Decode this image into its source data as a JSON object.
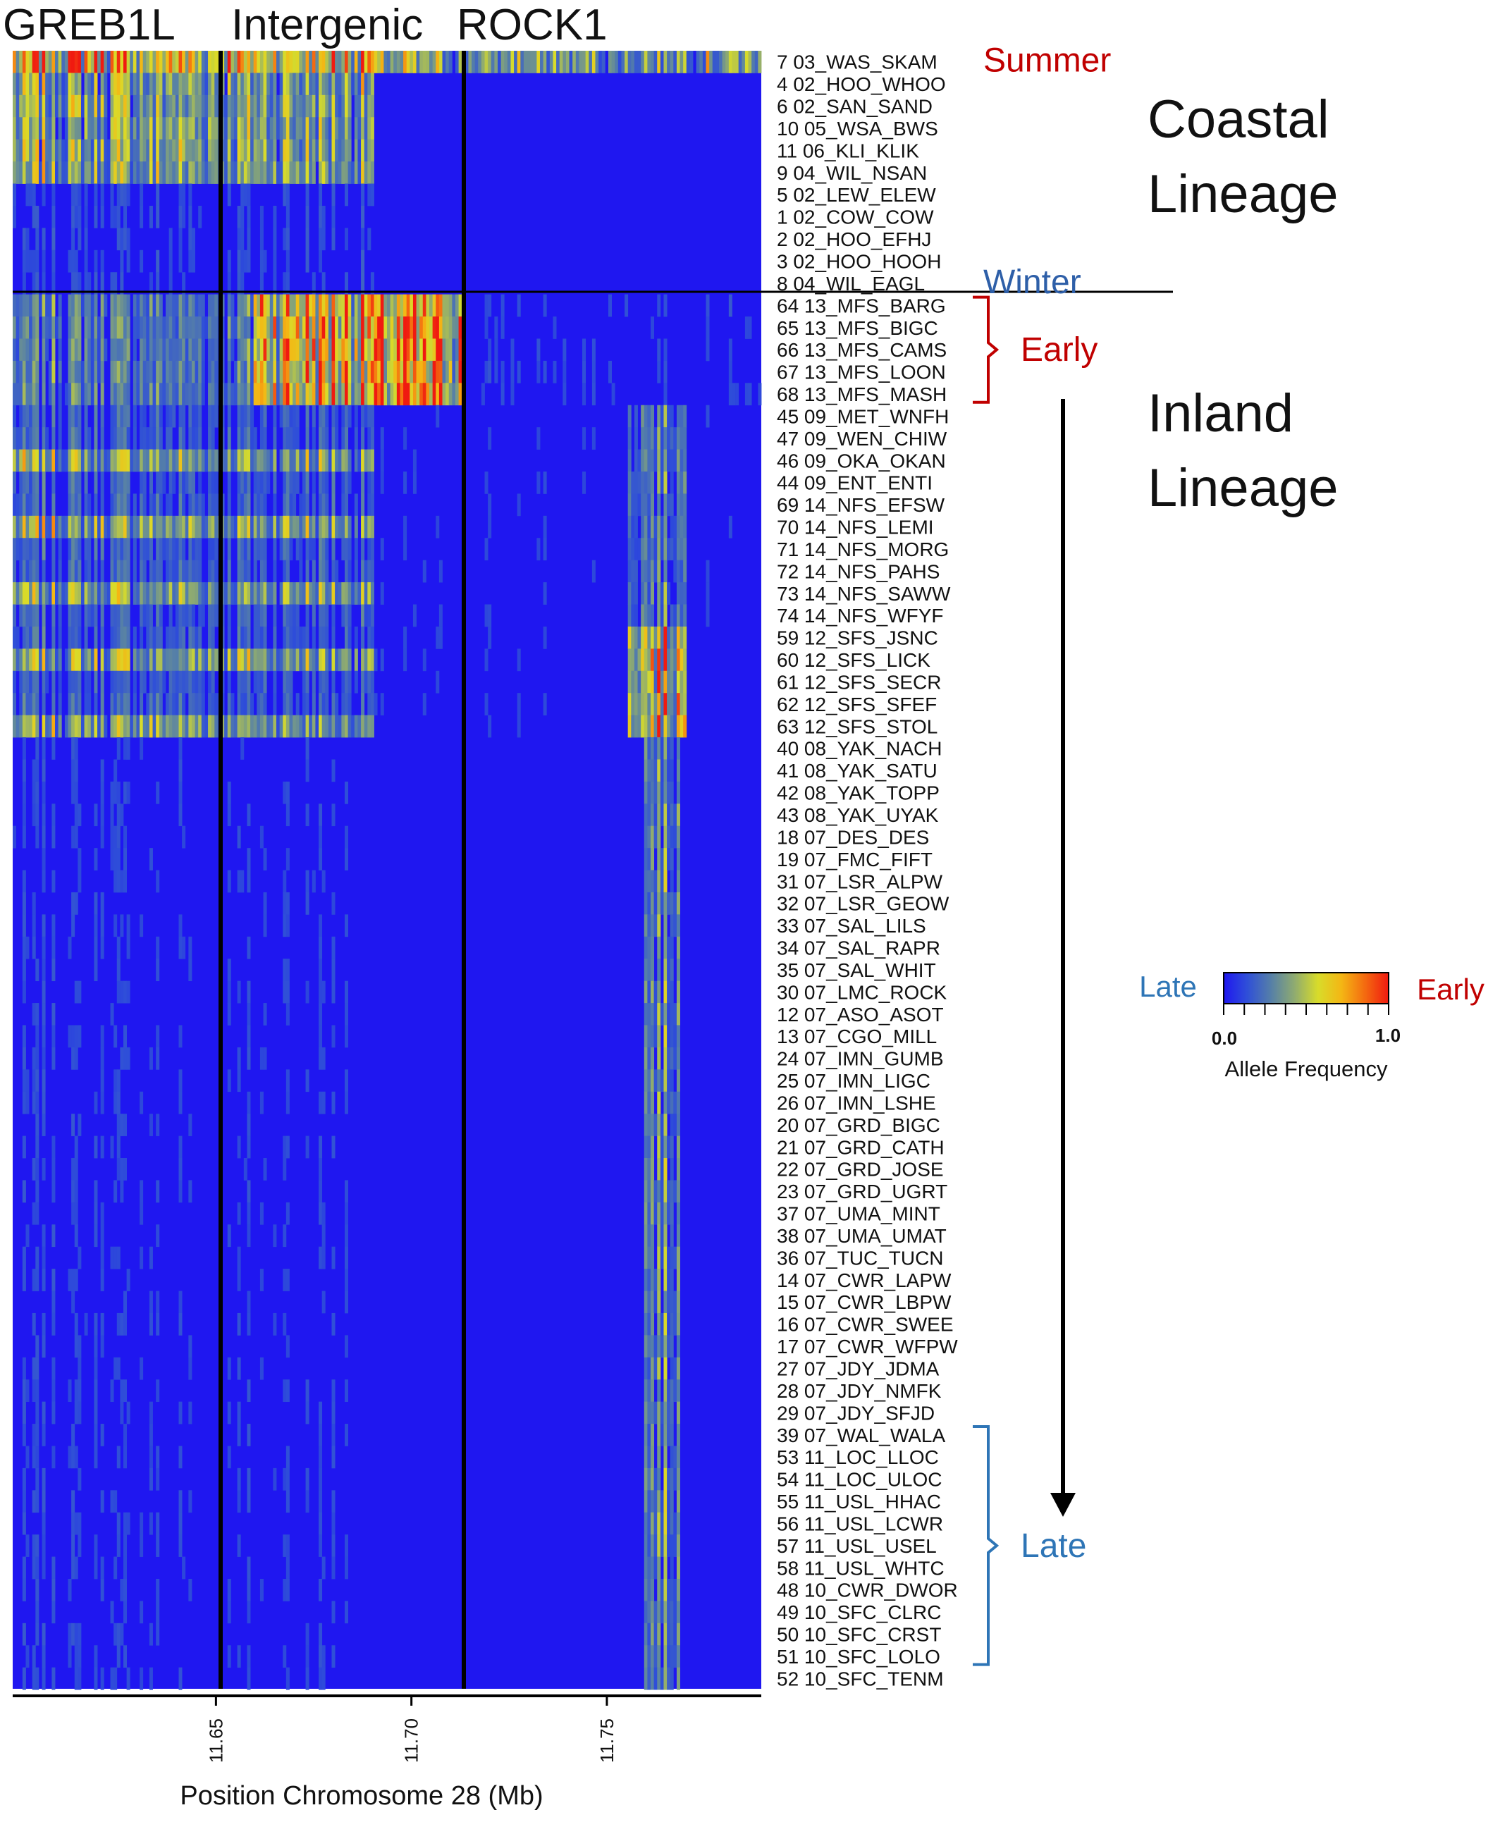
{
  "chart_data": {
    "type": "heatmap",
    "title": "",
    "region_labels": [
      "GREB1L",
      "Intergenic",
      "ROCK1"
    ],
    "xlabel": "Position Chromosome 28 (Mb)",
    "x_ticks": [
      11.65,
      11.7,
      11.75
    ],
    "xlim": [
      11.598,
      11.7895
    ],
    "region_boundaries_mb": [
      11.6515,
      11.7135
    ],
    "y_categories": [
      "7 03_WAS_SKAM",
      "4 02_HOO_WHOO",
      "6 02_SAN_SAND",
      "10 05_WSA_BWS",
      "11 06_KLI_KLIK",
      "9 04_WIL_NSAN",
      "5 02_LEW_ELEW",
      "1 02_COW_COW",
      "2 02_HOO_EFHJ",
      "3 02_HOO_HOOH",
      "8 04_WIL_EAGL",
      "64 13_MFS_BARG",
      "65 13_MFS_BIGC",
      "66 13_MFS_CAMS",
      "67 13_MFS_LOON",
      "68 13_MFS_MASH",
      "45 09_MET_WNFH",
      "47 09_WEN_CHIW",
      "46 09_OKA_OKAN",
      "44 09_ENT_ENTI",
      "69 14_NFS_EFSW",
      "70 14_NFS_LEMI",
      "71 14_NFS_MORG",
      "72 14_NFS_PAHS",
      "73 14_NFS_SAWW",
      "74 14_NFS_WFYF",
      "59 12_SFS_JSNC",
      "60 12_SFS_LICK",
      "61 12_SFS_SECR",
      "62 12_SFS_SFEF",
      "63 12_SFS_STOL",
      "40 08_YAK_NACH",
      "41 08_YAK_SATU",
      "42 08_YAK_TOPP",
      "43 08_YAK_UYAK",
      "18 07_DES_DES",
      "19 07_FMC_FIFT",
      "31 07_LSR_ALPW",
      "32 07_LSR_GEOW",
      "33 07_SAL_LILS",
      "34 07_SAL_RAPR",
      "35 07_SAL_WHIT",
      "30 07_LMC_ROCK",
      "12 07_ASO_ASOT",
      "13 07_CGO_MILL",
      "24 07_IMN_GUMB",
      "25 07_IMN_LIGC",
      "26 07_IMN_LSHE",
      "20 07_GRD_BIGC",
      "21 07_GRD_CATH",
      "22 07_GRD_JOSE",
      "23 07_GRD_UGRT",
      "37 07_UMA_MINT",
      "38 07_UMA_UMAT",
      "36 07_TUC_TUCN",
      "14 07_CWR_LAPW",
      "15 07_CWR_LBPW",
      "16 07_CWR_SWEE",
      "17 07_CWR_WFPW",
      "27 07_JDY_JDMA",
      "28 07_JDY_NMFK",
      "29 07_JDY_SFJD",
      "39 07_WAL_WALA",
      "53 11_LOC_LLOC",
      "54 11_LOC_ULOC",
      "55 11_USL_HHAC",
      "56 11_USL_LCWR",
      "57 11_USL_USEL",
      "58 11_USL_WHTC",
      "48 10_CWR_DWOR",
      "49 10_SFC_CLRC",
      "50 10_SFC_CRST",
      "51 10_SFC_LOLO",
      "52 10_SFC_TENM"
    ],
    "lineage_labels": [
      {
        "text": "Coastal Lineage",
        "lines": [
          "Coastal",
          "Lineage"
        ],
        "first_row": 0,
        "last_row": 10
      },
      {
        "text": "Inland Lineage",
        "lines": [
          "Inland",
          "Lineage"
        ],
        "first_row": 11,
        "last_row": 72
      }
    ],
    "annotations": [
      {
        "text": "Summer",
        "row": 0,
        "color": "#c00000"
      },
      {
        "text": "Winter",
        "row": 10,
        "color": "#2e5fa8"
      },
      {
        "text": "Early",
        "first_row": 11,
        "last_row": 15,
        "color": "#c00000",
        "bracket": true
      },
      {
        "text": "Late",
        "first_row": 62,
        "last_row": 72,
        "color": "#2e75b6",
        "bracket": true
      }
    ],
    "colorbar": {
      "label": "Allele Frequency",
      "min": 0.0,
      "max": 1.0,
      "min_label": "0.0",
      "max_label": "1.0",
      "low_label": "Late",
      "high_label": "Early",
      "low_color": "#2e75b6",
      "high_color": "#c00000",
      "colors": [
        "#1f17f0",
        "#2f4fd8",
        "#557fa8",
        "#8fab70",
        "#d8dc2a",
        "#f4b614",
        "#f46a10",
        "#f01a10"
      ]
    },
    "column_groups": [
      {
        "name": "GREB1L",
        "range_mb": [
          11.598,
          11.6515
        ]
      },
      {
        "name": "Intergenic",
        "range_mb": [
          11.6515,
          11.7135
        ]
      },
      {
        "name": "ROCK1",
        "range_mb": [
          11.7135,
          11.7895
        ]
      }
    ]
  }
}
